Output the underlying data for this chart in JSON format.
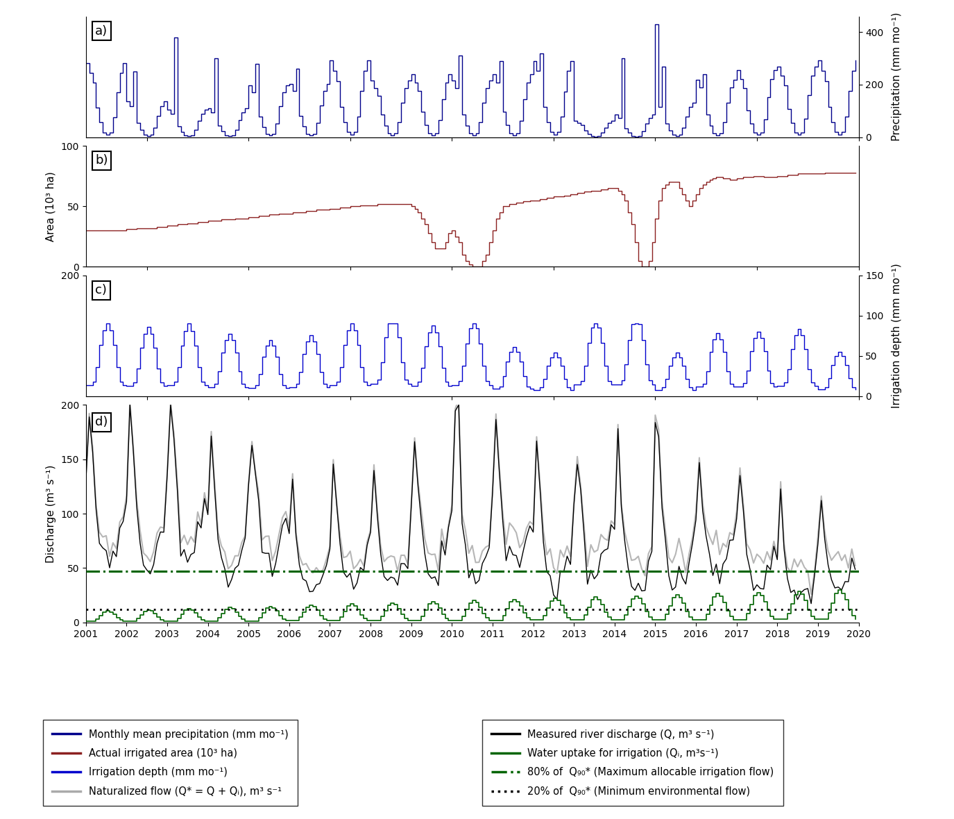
{
  "panel_labels": [
    "a)",
    "b)",
    "c)",
    "d)"
  ],
  "x_start": 2001.0,
  "x_end": 2020.0,
  "x_ticks": [
    2001,
    2002,
    2003,
    2004,
    2005,
    2006,
    2007,
    2008,
    2009,
    2010,
    2011,
    2012,
    2013,
    2014,
    2015,
    2016,
    2017,
    2018,
    2019,
    2020
  ],
  "panel_a": {
    "ylabel_right": "Precipitation (mm mo⁻¹)",
    "ylim": [
      0,
      460
    ],
    "yticks_right": [
      0,
      200,
      400
    ],
    "color": "#00008B"
  },
  "panel_b": {
    "ylabel_left": "Area (10³ ha)",
    "ylim_left": [
      0,
      100
    ],
    "yticks_left": [
      0,
      50,
      100
    ],
    "color": "#8B2020"
  },
  "panel_c": {
    "ylabel_right": "Irrigation depth (mm mo⁻¹)",
    "ylim_right": [
      0,
      150
    ],
    "yticks_right": [
      0,
      50,
      100,
      150
    ],
    "ytick_left_val": 200,
    "color": "#0000CD"
  },
  "panel_d": {
    "ylabel_left": "Discharge (m³ s⁻¹)",
    "ylim": [
      0,
      200
    ],
    "yticks": [
      0,
      50,
      100,
      150,
      200
    ],
    "line_80q90": 47.0,
    "line_20q90": 11.8,
    "color_discharge": "#000000",
    "color_naturalized": "#aaaaaa",
    "color_uptake": "#006400",
    "color_80q90": "#006400",
    "color_20q90": "#000000"
  },
  "legend_items_left": [
    {
      "label": "Monthly mean precipitation (mm mo⁻¹)",
      "color": "#00008B",
      "lw": 2.5,
      "ls": "-"
    },
    {
      "label": "Actual irrigated area (10³ ha)",
      "color": "#8B2020",
      "lw": 2.5,
      "ls": "-"
    },
    {
      "label": "Irrigation depth (mm mo⁻¹)",
      "color": "#0000CD",
      "lw": 2.5,
      "ls": "-"
    },
    {
      "label": "Naturalized flow (Q* = Q + Qᵢ), m³ s⁻¹",
      "color": "#aaaaaa",
      "lw": 2.5,
      "ls": "-"
    }
  ],
  "legend_items_right": [
    {
      "label": "Measured river discharge (Q, m³ s⁻¹)",
      "color": "#000000",
      "lw": 2.5,
      "ls": "-"
    },
    {
      "label": "Water uptake for irrigation (Qᵢ, m³s⁻¹)",
      "color": "#006400",
      "lw": 2.5,
      "ls": "-"
    },
    {
      "label": "80% of  Q₉₀* (Maximum allocable irrigation flow)",
      "color": "#006400",
      "lw": 2.5,
      "ls": "-."
    },
    {
      "label": "20% of  Q₉₀* (Minimum environmental flow)",
      "color": "#000000",
      "lw": 2.5,
      "ls": ":"
    }
  ],
  "figure_facecolor": "#ffffff"
}
